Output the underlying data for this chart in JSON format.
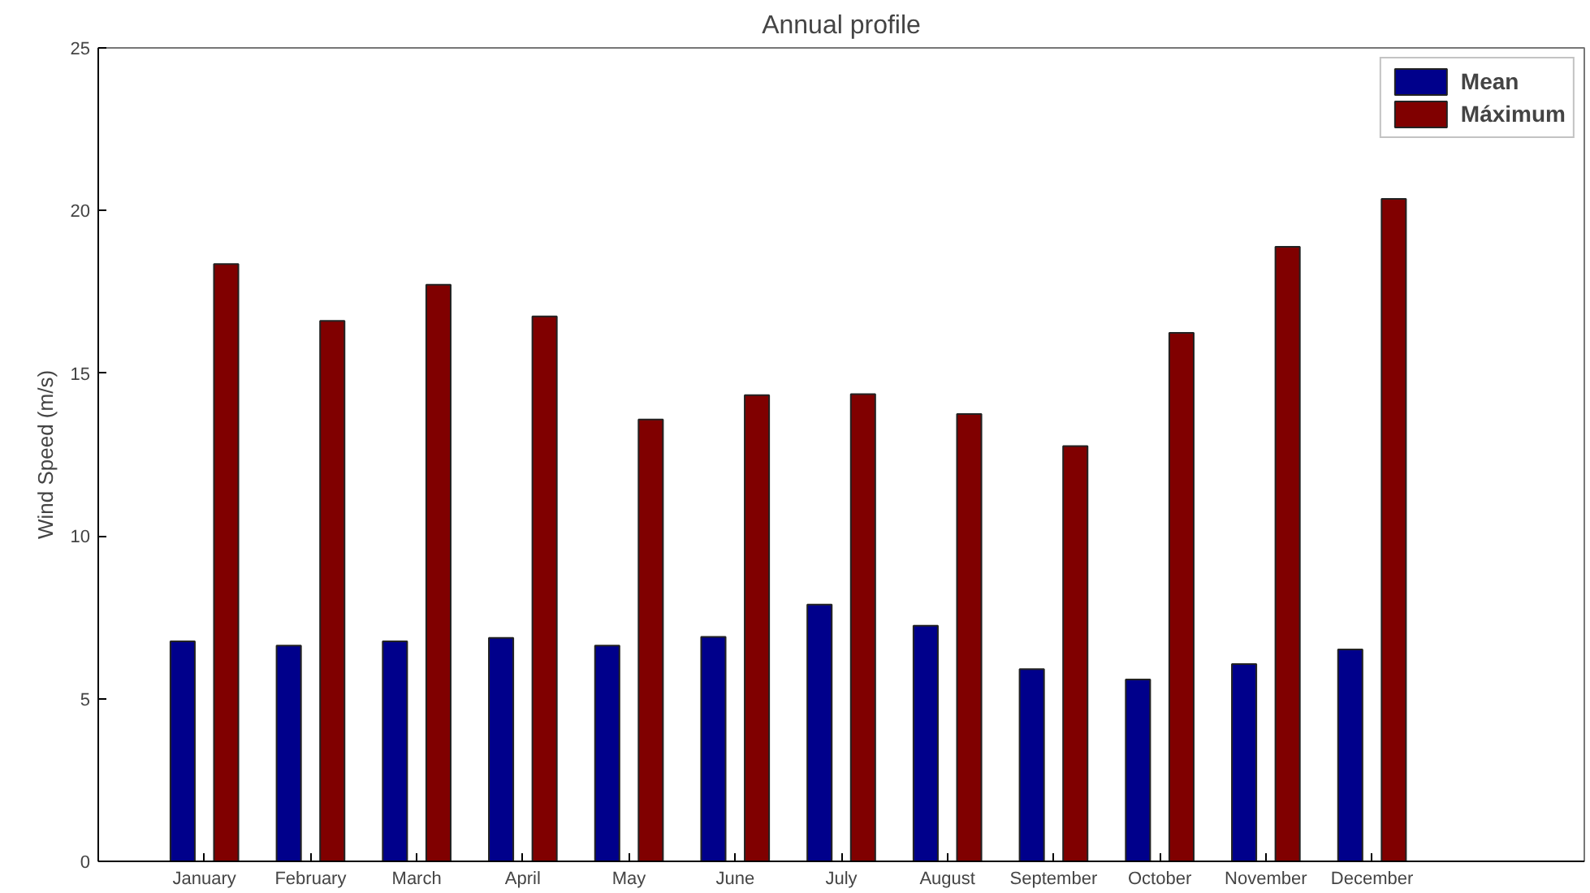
{
  "chart_data": {
    "type": "bar",
    "title": "Annual profile",
    "ylabel": "Wind Speed (m/s)",
    "categories": [
      "January",
      "February",
      "March",
      "April",
      "May",
      "June",
      "July",
      "August",
      "September",
      "October",
      "November",
      "December"
    ],
    "series": [
      {
        "name": "Mean",
        "color": "#00008b",
        "values": [
          6.76,
          6.63,
          6.76,
          6.87,
          6.63,
          6.9,
          7.89,
          7.24,
          5.91,
          5.59,
          6.06,
          6.51
        ]
      },
      {
        "name": "Máximum",
        "color": "#800000",
        "values": [
          18.36,
          16.61,
          17.72,
          16.75,
          13.58,
          14.33,
          14.36,
          13.75,
          12.76,
          16.24,
          18.89,
          20.36
        ]
      }
    ],
    "ylim": [
      0,
      25
    ],
    "yticks": [
      0,
      5,
      10,
      15,
      20,
      25
    ],
    "grid": false,
    "legend": "top right"
  }
}
